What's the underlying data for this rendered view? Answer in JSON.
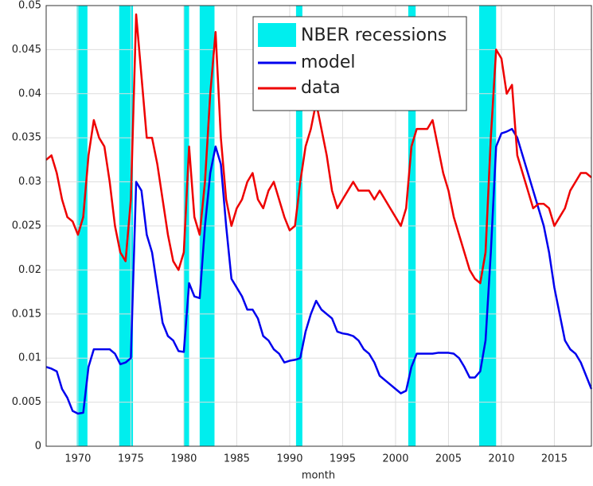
{
  "chart_data": {
    "type": "line",
    "xlabel": "month",
    "recession_label": "NBER recessions",
    "recession_color": "#00eeee",
    "recessions": [
      [
        1969.9,
        1970.9
      ],
      [
        1973.9,
        1975.2
      ],
      [
        1980.0,
        1980.5
      ],
      [
        1981.5,
        1982.9
      ],
      [
        1990.6,
        1991.2
      ],
      [
        2001.2,
        2001.9
      ],
      [
        2007.9,
        2009.5
      ]
    ],
    "x": [
      1967,
      1967.5,
      1968,
      1968.5,
      1969,
      1969.5,
      1970,
      1970.5,
      1971,
      1971.5,
      1972,
      1972.5,
      1973,
      1973.5,
      1974,
      1974.5,
      1975,
      1975.5,
      1976,
      1976.5,
      1977,
      1977.5,
      1978,
      1978.5,
      1979,
      1979.5,
      1980,
      1980.5,
      1981,
      1981.5,
      1982,
      1982.5,
      1983,
      1983.5,
      1984,
      1984.5,
      1985,
      1985.5,
      1986,
      1986.5,
      1987,
      1987.5,
      1988,
      1988.5,
      1989,
      1989.5,
      1990,
      1990.5,
      1991,
      1991.5,
      1992,
      1992.5,
      1993,
      1993.5,
      1994,
      1994.5,
      1995,
      1995.5,
      1996,
      1996.5,
      1997,
      1997.5,
      1998,
      1998.5,
      1999,
      1999.5,
      2000,
      2000.5,
      2001,
      2001.5,
      2002,
      2002.5,
      2003,
      2003.5,
      2004,
      2004.5,
      2005,
      2005.5,
      2006,
      2006.5,
      2007,
      2007.5,
      2008,
      2008.5,
      2009,
      2009.5,
      2010,
      2010.5,
      2011,
      2011.5,
      2012,
      2012.5,
      2013,
      2013.5,
      2014,
      2014.5,
      2015,
      2015.5,
      2016,
      2016.5,
      2017,
      2017.5,
      2018,
      2018.5
    ],
    "series": [
      {
        "name": "model",
        "color": "#0000ee",
        "values": [
          0.009,
          0.0088,
          0.0085,
          0.0065,
          0.0055,
          0.004,
          0.0037,
          0.0038,
          0.009,
          0.011,
          0.011,
          0.011,
          0.011,
          0.0105,
          0.0093,
          0.0095,
          0.01,
          0.03,
          0.029,
          0.024,
          0.022,
          0.018,
          0.014,
          0.0125,
          0.012,
          0.0108,
          0.0107,
          0.0185,
          0.017,
          0.0168,
          0.025,
          0.031,
          0.034,
          0.032,
          0.025,
          0.019,
          0.018,
          0.017,
          0.0155,
          0.0155,
          0.0145,
          0.0125,
          0.012,
          0.011,
          0.0105,
          0.0095,
          0.0097,
          0.0098,
          0.01,
          0.013,
          0.015,
          0.0165,
          0.0155,
          0.015,
          0.0145,
          0.013,
          0.0128,
          0.0127,
          0.0125,
          0.012,
          0.011,
          0.0105,
          0.0095,
          0.008,
          0.0075,
          0.007,
          0.0065,
          0.006,
          0.0063,
          0.009,
          0.0105,
          0.0105,
          0.0105,
          0.0105,
          0.0106,
          0.0106,
          0.0106,
          0.0105,
          0.01,
          0.009,
          0.0078,
          0.0078,
          0.0085,
          0.012,
          0.022,
          0.034,
          0.0355,
          0.0357,
          0.036,
          0.035,
          0.033,
          0.031,
          0.029,
          0.027,
          0.025,
          0.022,
          0.018,
          0.015,
          0.012,
          0.011,
          0.0105,
          0.0095,
          0.008,
          0.0065
        ]
      },
      {
        "name": "data",
        "color": "#ee0000",
        "values": [
          0.0325,
          0.033,
          0.031,
          0.028,
          0.026,
          0.0255,
          0.024,
          0.026,
          0.033,
          0.037,
          0.035,
          0.034,
          0.03,
          0.025,
          0.022,
          0.021,
          0.028,
          0.049,
          0.042,
          0.035,
          0.035,
          0.032,
          0.028,
          0.024,
          0.021,
          0.02,
          0.022,
          0.034,
          0.026,
          0.024,
          0.03,
          0.04,
          0.047,
          0.035,
          0.028,
          0.025,
          0.027,
          0.028,
          0.03,
          0.031,
          0.028,
          0.027,
          0.029,
          0.03,
          0.028,
          0.026,
          0.0245,
          0.025,
          0.03,
          0.034,
          0.036,
          0.039,
          0.036,
          0.033,
          0.029,
          0.027,
          0.028,
          0.029,
          0.03,
          0.029,
          0.029,
          0.029,
          0.028,
          0.029,
          0.028,
          0.027,
          0.026,
          0.025,
          0.027,
          0.034,
          0.036,
          0.036,
          0.036,
          0.037,
          0.034,
          0.031,
          0.029,
          0.026,
          0.024,
          0.022,
          0.02,
          0.019,
          0.0185,
          0.022,
          0.035,
          0.045,
          0.044,
          0.04,
          0.041,
          0.033,
          0.031,
          0.029,
          0.027,
          0.0275,
          0.0275,
          0.027,
          0.025,
          0.026,
          0.027,
          0.029,
          0.03,
          0.031,
          0.031,
          0.0305
        ]
      }
    ],
    "xlim": [
      1967,
      2018.5
    ],
    "xticks": [
      1970,
      1975,
      1980,
      1985,
      1990,
      1995,
      2000,
      2005,
      2010,
      2015
    ],
    "ylim": [
      0,
      0.05
    ],
    "yticks": [
      0,
      0.005,
      0.01,
      0.015,
      0.02,
      0.025,
      0.03,
      0.035,
      0.04,
      0.045,
      0.05
    ],
    "grid": true,
    "legend": "top"
  }
}
